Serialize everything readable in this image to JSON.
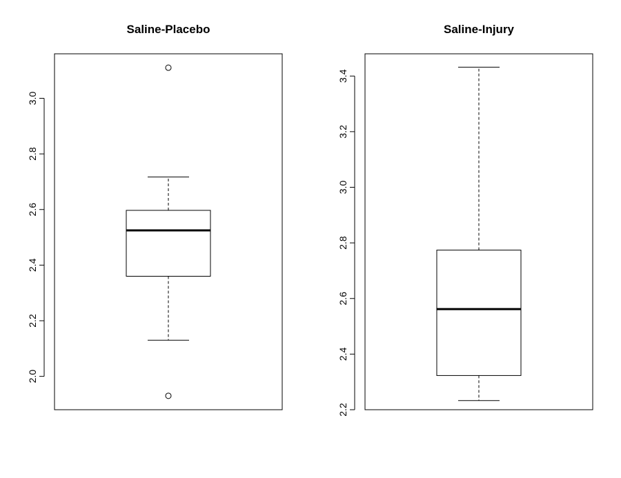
{
  "chart_data": [
    {
      "type": "boxplot",
      "title": "Saline-Placebo",
      "ylim": [
        1.88,
        3.16
      ],
      "yticks": [
        2.0,
        2.2,
        2.4,
        2.6,
        2.8,
        3.0
      ],
      "ytick_labels": [
        "2.0",
        "2.2",
        "2.4",
        "2.6",
        "2.8",
        "3.0"
      ],
      "stats": {
        "whisker_low": 2.13,
        "q1": 2.36,
        "median": 2.525,
        "q3": 2.597,
        "whisker_high": 2.717
      },
      "outliers": [
        3.11,
        1.93
      ]
    },
    {
      "type": "boxplot",
      "title": "Saline-Injury",
      "ylim": [
        2.2,
        3.48
      ],
      "yticks": [
        2.2,
        2.4,
        2.6,
        2.8,
        3.0,
        3.2,
        3.4
      ],
      "ytick_labels": [
        "2.2",
        "2.4",
        "2.6",
        "2.8",
        "3.0",
        "3.2",
        "3.4"
      ],
      "stats": {
        "whisker_low": 2.233,
        "q1": 2.323,
        "median": 2.562,
        "q3": 2.774,
        "whisker_high": 3.432
      },
      "outliers": []
    }
  ]
}
